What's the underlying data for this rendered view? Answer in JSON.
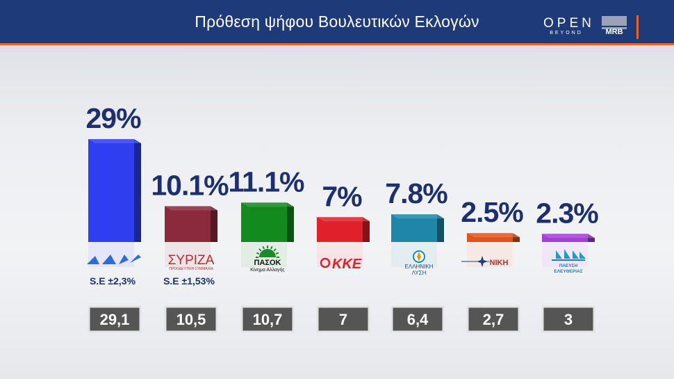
{
  "header": {
    "title": "Πρόθεση ψήφου Βουλευτικών Εκλογών",
    "channel_logo": "OPEN",
    "channel_logo_sub": "BEYOND",
    "pollster_logo": "MRB"
  },
  "chart_data": {
    "type": "bar",
    "title": "Πρόθεση ψήφου Βουλευτικών Εκλογών",
    "categories": [
      "ΝΔ",
      "ΣΥΡΙΖΑ",
      "ΠΑΣΟΚ",
      "ΚΚΕ",
      "ΕΛΛΗΝΙΚΗ ΛΥΣΗ",
      "ΝΙΚΗ",
      "ΠΛΕΥΣΗ ΕΛΕΥΘΕΡΙΑΣ"
    ],
    "series": [
      {
        "values": [
          29,
          10.1,
          11.1,
          7,
          7.8,
          2.5,
          2.3
        ]
      },
      {
        "values": [
          29.1,
          10.5,
          10.7,
          7,
          6.4,
          2.7,
          3
        ]
      }
    ],
    "value_labels": [
      "29%",
      "10.1%",
      "11.1%",
      "7%",
      "7.8%",
      "2.5%",
      "2.3%"
    ],
    "previous_labels": [
      "29,1",
      "10,5",
      "10,7",
      "7",
      "6,4",
      "2,7",
      "3"
    ],
    "sampling_error": [
      "S.E ±2,3%",
      "S.E ±1,53%",
      "",
      "",
      "",
      "",
      ""
    ],
    "colors": [
      "#2f3ff0",
      "#8a2a3c",
      "#138a1e",
      "#e0202a",
      "#1f86a8",
      "#e0541b",
      "#a43fd6"
    ],
    "logos": [
      {
        "text": "",
        "sub": "",
        "icon": "nd-logo-icon",
        "color": "#2a6fd6"
      },
      {
        "text": "ΣΥΡΙΖΑ",
        "sub": "ΠΡΟΟΔΕΥΤΙΚΗ ΣΥΜΜΑΧΙΑ",
        "icon": "syriza-logo-icon",
        "color": "#c1272d"
      },
      {
        "text": "ΠΑΣΟΚ",
        "sub": "Κίνημα Αλλαγής",
        "icon": "pasok-sun-icon",
        "color": "#111111"
      },
      {
        "text": "ΚΚΕ",
        "sub": "",
        "icon": "kke-hammer-sickle-icon",
        "color": "#e0202a"
      },
      {
        "text": "ΕΛΛΗΝΙΚΗ",
        "sub": "ΛΥΣΗ",
        "icon": "elliniki-lysi-compass-icon",
        "color": "#1a4f8c"
      },
      {
        "text": "ΝΙΚΗ",
        "sub": "",
        "icon": "niki-star-icon",
        "color": "#1a3f7a"
      },
      {
        "text": "ΠΛΕΥΣΗ",
        "sub": "ΕΛΕΥΘΕΡΙΑΣ",
        "icon": "plefsi-sails-icon",
        "color": "#1a7fb0"
      }
    ]
  }
}
